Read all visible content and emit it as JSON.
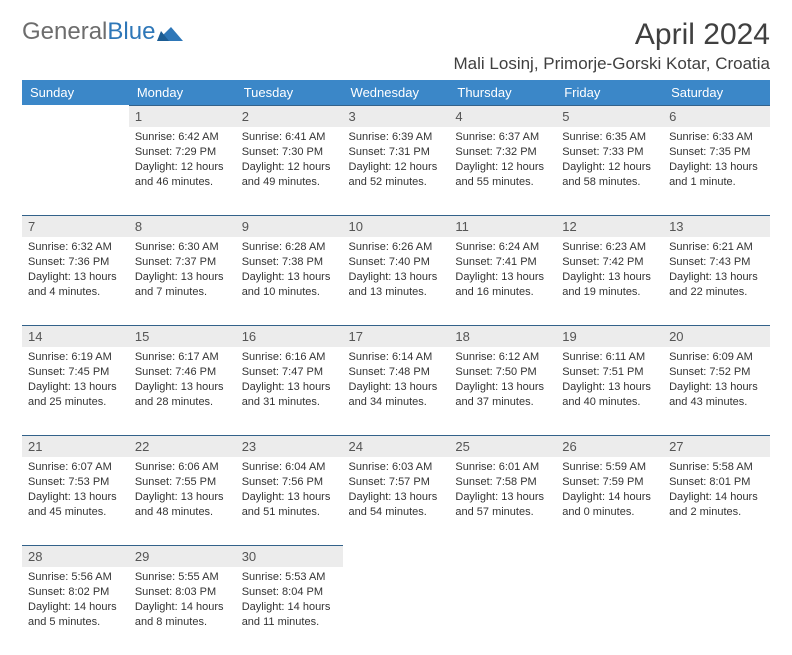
{
  "logo": {
    "grey": "General",
    "blue": "Blue"
  },
  "title": "April 2024",
  "location": "Mali Losinj, Primorje-Gorski Kotar, Croatia",
  "colors": {
    "header_bg": "#3b87c8",
    "header_text": "#ffffff",
    "daynum_bg": "#ececec",
    "daynum_border": "#33628a",
    "body_text": "#333333",
    "logo_grey": "#6d6d6d",
    "logo_blue": "#2e77b8"
  },
  "day_headers": [
    "Sunday",
    "Monday",
    "Tuesday",
    "Wednesday",
    "Thursday",
    "Friday",
    "Saturday"
  ],
  "weeks": [
    [
      null,
      {
        "n": "1",
        "sr": "6:42 AM",
        "ss": "7:29 PM",
        "dl": "12 hours and 46 minutes."
      },
      {
        "n": "2",
        "sr": "6:41 AM",
        "ss": "7:30 PM",
        "dl": "12 hours and 49 minutes."
      },
      {
        "n": "3",
        "sr": "6:39 AM",
        "ss": "7:31 PM",
        "dl": "12 hours and 52 minutes."
      },
      {
        "n": "4",
        "sr": "6:37 AM",
        "ss": "7:32 PM",
        "dl": "12 hours and 55 minutes."
      },
      {
        "n": "5",
        "sr": "6:35 AM",
        "ss": "7:33 PM",
        "dl": "12 hours and 58 minutes."
      },
      {
        "n": "6",
        "sr": "6:33 AM",
        "ss": "7:35 PM",
        "dl": "13 hours and 1 minute."
      }
    ],
    [
      {
        "n": "7",
        "sr": "6:32 AM",
        "ss": "7:36 PM",
        "dl": "13 hours and 4 minutes."
      },
      {
        "n": "8",
        "sr": "6:30 AM",
        "ss": "7:37 PM",
        "dl": "13 hours and 7 minutes."
      },
      {
        "n": "9",
        "sr": "6:28 AM",
        "ss": "7:38 PM",
        "dl": "13 hours and 10 minutes."
      },
      {
        "n": "10",
        "sr": "6:26 AM",
        "ss": "7:40 PM",
        "dl": "13 hours and 13 minutes."
      },
      {
        "n": "11",
        "sr": "6:24 AM",
        "ss": "7:41 PM",
        "dl": "13 hours and 16 minutes."
      },
      {
        "n": "12",
        "sr": "6:23 AM",
        "ss": "7:42 PM",
        "dl": "13 hours and 19 minutes."
      },
      {
        "n": "13",
        "sr": "6:21 AM",
        "ss": "7:43 PM",
        "dl": "13 hours and 22 minutes."
      }
    ],
    [
      {
        "n": "14",
        "sr": "6:19 AM",
        "ss": "7:45 PM",
        "dl": "13 hours and 25 minutes."
      },
      {
        "n": "15",
        "sr": "6:17 AM",
        "ss": "7:46 PM",
        "dl": "13 hours and 28 minutes."
      },
      {
        "n": "16",
        "sr": "6:16 AM",
        "ss": "7:47 PM",
        "dl": "13 hours and 31 minutes."
      },
      {
        "n": "17",
        "sr": "6:14 AM",
        "ss": "7:48 PM",
        "dl": "13 hours and 34 minutes."
      },
      {
        "n": "18",
        "sr": "6:12 AM",
        "ss": "7:50 PM",
        "dl": "13 hours and 37 minutes."
      },
      {
        "n": "19",
        "sr": "6:11 AM",
        "ss": "7:51 PM",
        "dl": "13 hours and 40 minutes."
      },
      {
        "n": "20",
        "sr": "6:09 AM",
        "ss": "7:52 PM",
        "dl": "13 hours and 43 minutes."
      }
    ],
    [
      {
        "n": "21",
        "sr": "6:07 AM",
        "ss": "7:53 PM",
        "dl": "13 hours and 45 minutes."
      },
      {
        "n": "22",
        "sr": "6:06 AM",
        "ss": "7:55 PM",
        "dl": "13 hours and 48 minutes."
      },
      {
        "n": "23",
        "sr": "6:04 AM",
        "ss": "7:56 PM",
        "dl": "13 hours and 51 minutes."
      },
      {
        "n": "24",
        "sr": "6:03 AM",
        "ss": "7:57 PM",
        "dl": "13 hours and 54 minutes."
      },
      {
        "n": "25",
        "sr": "6:01 AM",
        "ss": "7:58 PM",
        "dl": "13 hours and 57 minutes."
      },
      {
        "n": "26",
        "sr": "5:59 AM",
        "ss": "7:59 PM",
        "dl": "14 hours and 0 minutes."
      },
      {
        "n": "27",
        "sr": "5:58 AM",
        "ss": "8:01 PM",
        "dl": "14 hours and 2 minutes."
      }
    ],
    [
      {
        "n": "28",
        "sr": "5:56 AM",
        "ss": "8:02 PM",
        "dl": "14 hours and 5 minutes."
      },
      {
        "n": "29",
        "sr": "5:55 AM",
        "ss": "8:03 PM",
        "dl": "14 hours and 8 minutes."
      },
      {
        "n": "30",
        "sr": "5:53 AM",
        "ss": "8:04 PM",
        "dl": "14 hours and 11 minutes."
      },
      null,
      null,
      null,
      null
    ]
  ],
  "labels": {
    "sunrise": "Sunrise:",
    "sunset": "Sunset:",
    "daylight": "Daylight:"
  }
}
